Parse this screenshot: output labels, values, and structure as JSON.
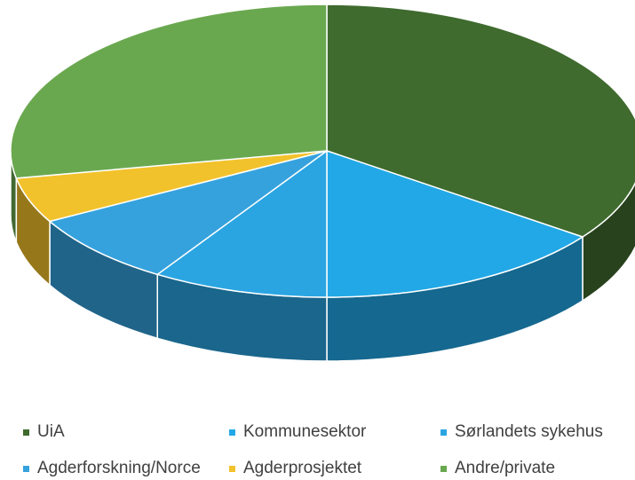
{
  "chart_data": {
    "type": "pie3d",
    "categories": [
      "UiA",
      "Kommunesektor",
      "Sørlandets sykehus",
      "Agderforskning/Norce",
      "Agderprosjektet",
      "Andre/private"
    ],
    "values": [
      35,
      15,
      9,
      8,
      5,
      28
    ],
    "colors": [
      "#3f6b2e",
      "#22a8e6",
      "#2aa5e2",
      "#36a2dd",
      "#f2c22c",
      "#6aa84f"
    ],
    "legend": "bottom"
  }
}
